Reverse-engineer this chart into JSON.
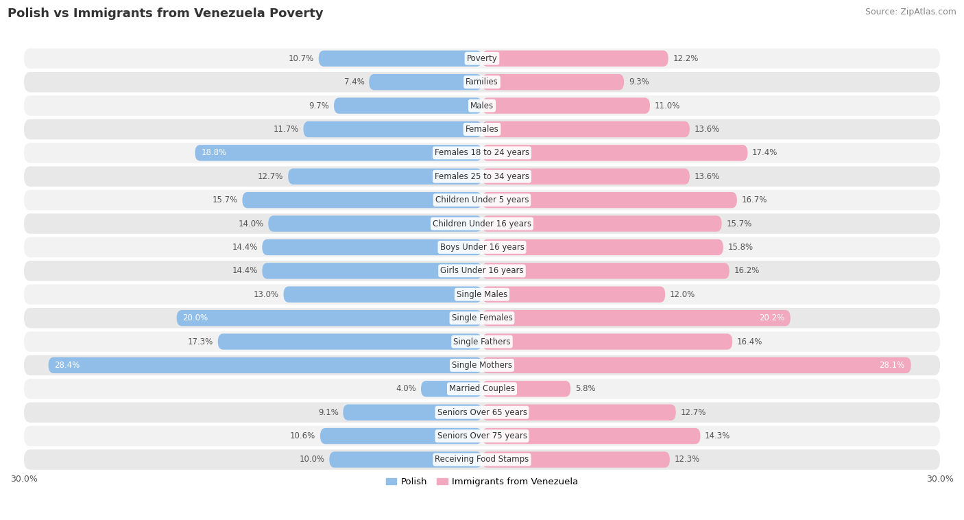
{
  "title": "Polish vs Immigrants from Venezuela Poverty",
  "source": "Source: ZipAtlas.com",
  "categories": [
    "Poverty",
    "Families",
    "Males",
    "Females",
    "Females 18 to 24 years",
    "Females 25 to 34 years",
    "Children Under 5 years",
    "Children Under 16 years",
    "Boys Under 16 years",
    "Girls Under 16 years",
    "Single Males",
    "Single Females",
    "Single Fathers",
    "Single Mothers",
    "Married Couples",
    "Seniors Over 65 years",
    "Seniors Over 75 years",
    "Receiving Food Stamps"
  ],
  "polish_values": [
    10.7,
    7.4,
    9.7,
    11.7,
    18.8,
    12.7,
    15.7,
    14.0,
    14.4,
    14.4,
    13.0,
    20.0,
    17.3,
    28.4,
    4.0,
    9.1,
    10.6,
    10.0
  ],
  "venezuela_values": [
    12.2,
    9.3,
    11.0,
    13.6,
    17.4,
    13.6,
    16.7,
    15.7,
    15.8,
    16.2,
    12.0,
    20.2,
    16.4,
    28.1,
    5.8,
    12.7,
    14.3,
    12.3
  ],
  "polish_color": "#90BEE8",
  "venezuela_color": "#F2A8BE",
  "highlight_threshold": 17.5,
  "row_bg_color_light": "#F2F2F2",
  "row_bg_color_dark": "#E8E8E8",
  "axis_max": 30.0,
  "legend_polish": "Polish",
  "legend_venezuela": "Immigrants from Venezuela"
}
